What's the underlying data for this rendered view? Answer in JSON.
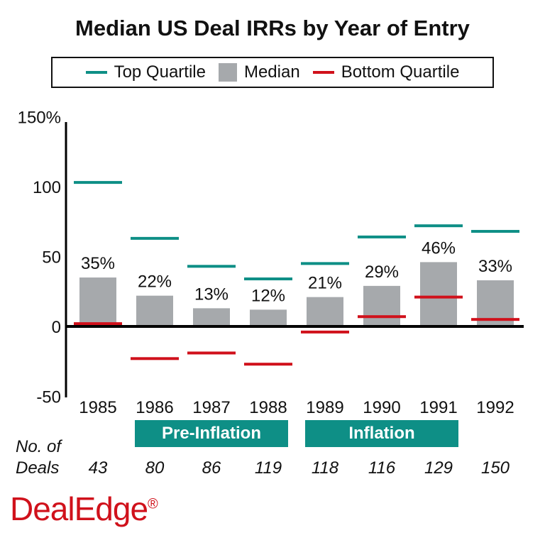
{
  "chart_data": {
    "type": "bar",
    "title": "Median US Deal IRRs by Year of Entry",
    "categories": [
      "1985",
      "1986",
      "1987",
      "1988",
      "1989",
      "1990",
      "1991",
      "1992"
    ],
    "series": [
      {
        "name": "Top Quartile",
        "type": "marker-line",
        "values": [
          103,
          63,
          43,
          34,
          45,
          64,
          72,
          68
        ]
      },
      {
        "name": "Median",
        "type": "bar",
        "values": [
          35,
          22,
          13,
          12,
          21,
          29,
          46,
          33
        ],
        "labels": [
          "35%",
          "22%",
          "13%",
          "12%",
          "21%",
          "29%",
          "46%",
          "33%"
        ]
      },
      {
        "name": "Bottom Quartile",
        "type": "marker-line",
        "values": [
          2,
          -23,
          -19,
          -27,
          -4,
          7,
          21,
          5
        ]
      }
    ],
    "ylim": [
      -50,
      150
    ],
    "yticks": [
      {
        "v": 150,
        "label": "150%"
      },
      {
        "v": 100,
        "label": "100"
      },
      {
        "v": 50,
        "label": "50"
      },
      {
        "v": 0,
        "label": "0"
      },
      {
        "v": -50,
        "label": "-50"
      }
    ],
    "grid": false,
    "legend_placement": "top",
    "colors": {
      "top": "#0e8f86",
      "median": "#a6a9ac",
      "bottom": "#d0111b"
    },
    "periods": [
      {
        "label": "Pre-Inflation",
        "from": "1986",
        "to": "1988"
      },
      {
        "label": "Inflation",
        "from": "1989",
        "to": "1991"
      }
    ],
    "deals_label": [
      "No. of",
      "Deals"
    ],
    "deals": [
      "43",
      "80",
      "86",
      "119",
      "118",
      "116",
      "129",
      "150"
    ]
  },
  "brand": {
    "logo": "DealEdge",
    "mark": "®"
  }
}
